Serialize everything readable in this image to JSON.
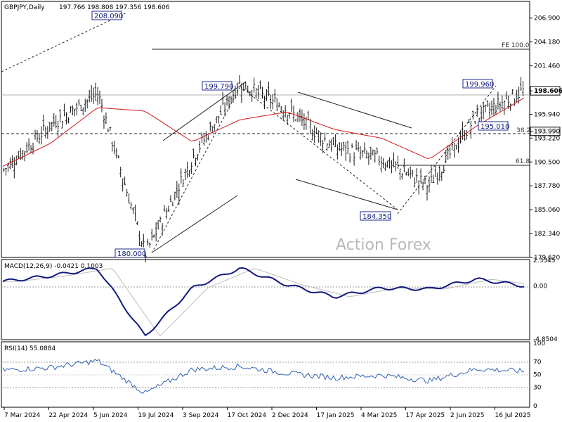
{
  "price_panel": {
    "title": "GBPJPY,Daily",
    "ohlc": "197.766 198.808 197.356 198.606",
    "watermark": "Action Forex",
    "y_ticks": [
      "206.900",
      "204.180",
      "201.460",
      "198.606",
      "195.940",
      "193.990",
      "193.220",
      "190.500",
      "187.780",
      "185.060",
      "182.340",
      "179.620"
    ],
    "current_price": "198.606",
    "fib_price": "193.990"
  },
  "macd_panel": {
    "title": "MACD(12,26,9) -0.0421 0.1003",
    "y_ticks": [
      "2.3345",
      "0.00",
      "-4.8504"
    ]
  },
  "rsi_panel": {
    "title": "RSI(14) 55.0884",
    "y_ticks": [
      "100",
      "70",
      "50",
      "30",
      "0"
    ]
  },
  "x_ticks": [
    "7 Mar 2024",
    "22 Apr 2024",
    "5 Jun 2024",
    "19 Jul 2024",
    "3 Sep 2024",
    "17 Oct 2024",
    "2 Dec 2024",
    "17 Jan 2025",
    "4 Mar 2025",
    "17 Apr 2025",
    "2 Jun 2025",
    "16 Jul 2025"
  ],
  "annotations": {
    "a1": "208.090",
    "a2": "180.000",
    "a3": "199.790",
    "a4": "184.350",
    "a5": "199.960",
    "a6": "195.010",
    "fe": "FE 100.0",
    "fib382": "38.2",
    "fib618": "61.8"
  },
  "chart_data": {
    "type": "line",
    "symbol": "GBPJPY",
    "timeframe": "Daily",
    "x": [
      "7 Mar 2024",
      "22 Apr 2024",
      "5 Jun 2024",
      "19 Jul 2024",
      "3 Sep 2024",
      "17 Oct 2024",
      "2 Dec 2024",
      "17 Jan 2025",
      "4 Mar 2025",
      "17 Apr 2025",
      "2 Jun 2025",
      "16 Jul 2025"
    ],
    "series": [
      {
        "values": [
          189.6,
          194.8,
          198.3,
          180.0,
          191.0,
          199.5,
          196.5,
          192.2,
          190.8,
          187.8,
          195.6,
          198.6
        ]
      },
      {
        "values": [
          190.0,
          192.6,
          196.7,
          196.3,
          192.8,
          195.3,
          196.2,
          194.2,
          193.2,
          190.8,
          194.6,
          197.8
        ]
      }
    ],
    "ylim": [
      179.62,
      208.8
    ],
    "grid": false,
    "macd": {
      "values": [
        0.4,
        0.9,
        1.6,
        -4.6,
        -0.2,
        1.6,
        0.1,
        -1.0,
        -0.2,
        -0.3,
        0.6,
        0.0
      ],
      "ylim": [
        -4.8504,
        2.3345
      ]
    },
    "rsi": {
      "values": [
        57,
        61,
        72,
        20,
        58,
        63,
        52,
        45,
        49,
        40,
        59,
        55
      ],
      "ylim": [
        0,
        100
      ],
      "levels": [
        70,
        50,
        30
      ]
    }
  }
}
